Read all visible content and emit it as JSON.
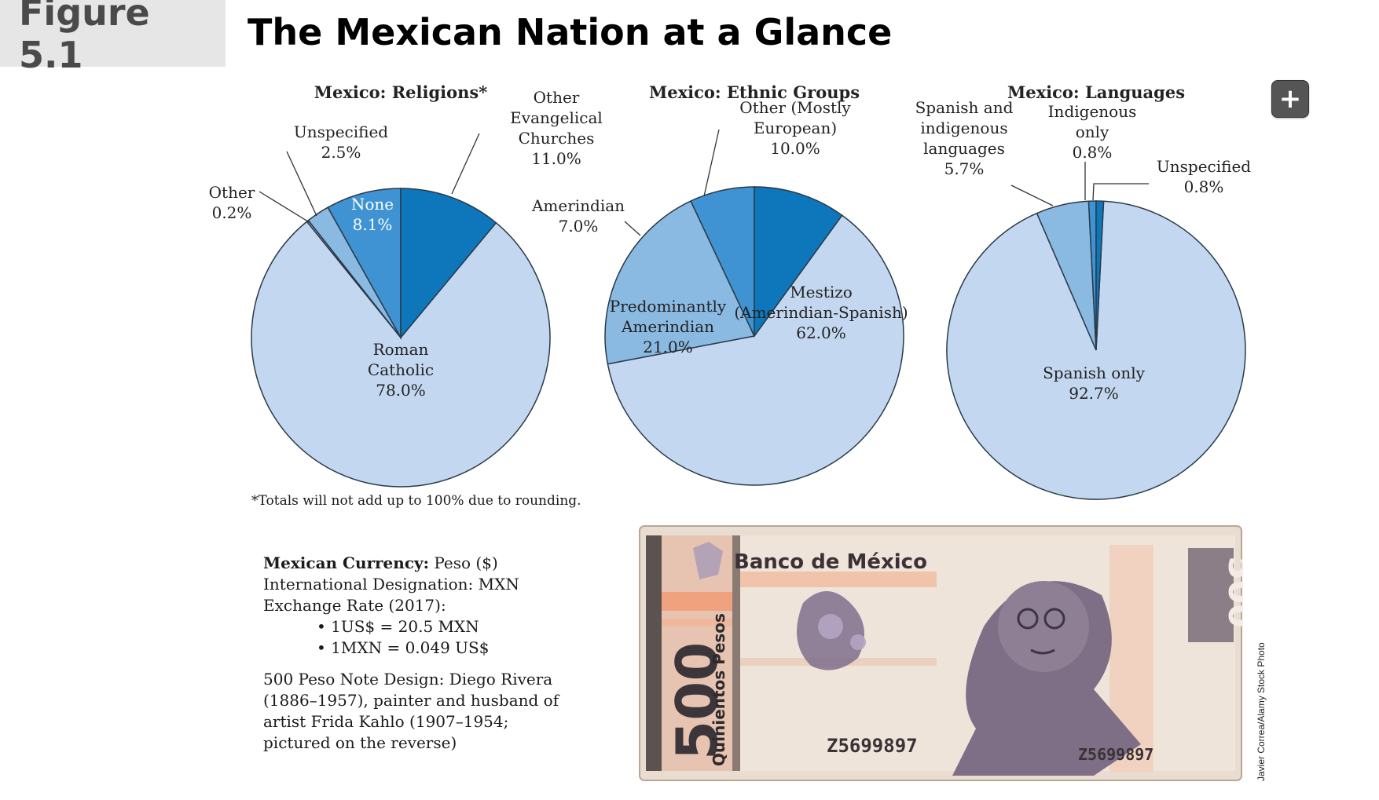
{
  "figure": {
    "label": "Figure 5.1",
    "title": "The Mexican Nation at a Glance"
  },
  "colors": {
    "light": "#c3d8f0",
    "mid": "#8ab9e2",
    "medium": "#3f93d2",
    "dark": "#0e76bb",
    "outline": "#2a3a48"
  },
  "chart_data": [
    {
      "type": "pie",
      "title": "Mexico: Religions*",
      "slices": [
        {
          "label": "Roman Catholic",
          "value": 78.0,
          "text": "78.0%",
          "color": "#c3d8f0"
        },
        {
          "label": "Other",
          "value": 0.2,
          "text": "0.2%",
          "color": "#8ab9e2"
        },
        {
          "label": "Unspecified",
          "value": 2.5,
          "text": "2.5%",
          "color": "#8ab9e2"
        },
        {
          "label": "None",
          "value": 8.1,
          "text": "8.1%",
          "color": "#3f93d2"
        },
        {
          "label": "Other Evangelical Churches",
          "value": 11.0,
          "text": "11.0%",
          "color": "#0e76bb"
        }
      ]
    },
    {
      "type": "pie",
      "title": "Mexico: Ethnic Groups",
      "slices": [
        {
          "label": "Mestizo (Amerindian-Spanish)",
          "value": 62.0,
          "text": "62.0%",
          "color": "#c3d8f0"
        },
        {
          "label": "Predominantly Amerindian",
          "value": 21.0,
          "text": "21.0%",
          "color": "#8ab9e2"
        },
        {
          "label": "Amerindian",
          "value": 7.0,
          "text": "7.0%",
          "color": "#3f93d2"
        },
        {
          "label": "Other (Mostly European)",
          "value": 10.0,
          "text": "10.0%",
          "color": "#0e76bb"
        }
      ]
    },
    {
      "type": "pie",
      "title": "Mexico: Languages",
      "slices": [
        {
          "label": "Spanish only",
          "value": 92.7,
          "text": "92.7%",
          "color": "#c3d8f0"
        },
        {
          "label": "Spanish and indigenous languages",
          "value": 5.7,
          "text": "5.7%",
          "color": "#8ab9e2"
        },
        {
          "label": "Indigenous only",
          "value": 0.8,
          "text": "0.8%",
          "color": "#3f93d2"
        },
        {
          "label": "Unspecified",
          "value": 0.8,
          "text": "0.8%",
          "color": "#0e76bb"
        }
      ]
    }
  ],
  "footnote": "*Totals will not add up to 100% due to rounding.",
  "currency": {
    "name_label": "Mexican Currency:",
    "name_value": "Peso ($)",
    "designation": "International Designation: MXN",
    "exchange_label": "Exchange Rate (2017):",
    "rate_1": "1US$ = 20.5 MXN",
    "rate_2": "1MXN = 0.049 US$",
    "note_design": "500 Peso Note Design: Diego Rivera (1886–1957), painter and husband of artist Frida Kahlo (1907–1954; pictured on the reverse)"
  },
  "banknote": {
    "bank_name": "Banco de México",
    "denomination": "500",
    "denomination_words": "Quinientos Pesos",
    "serial": "Z5699897"
  },
  "photo_credit": "Javier Correa/Alamy Stock Photo",
  "expand_icon": "plus-icon"
}
